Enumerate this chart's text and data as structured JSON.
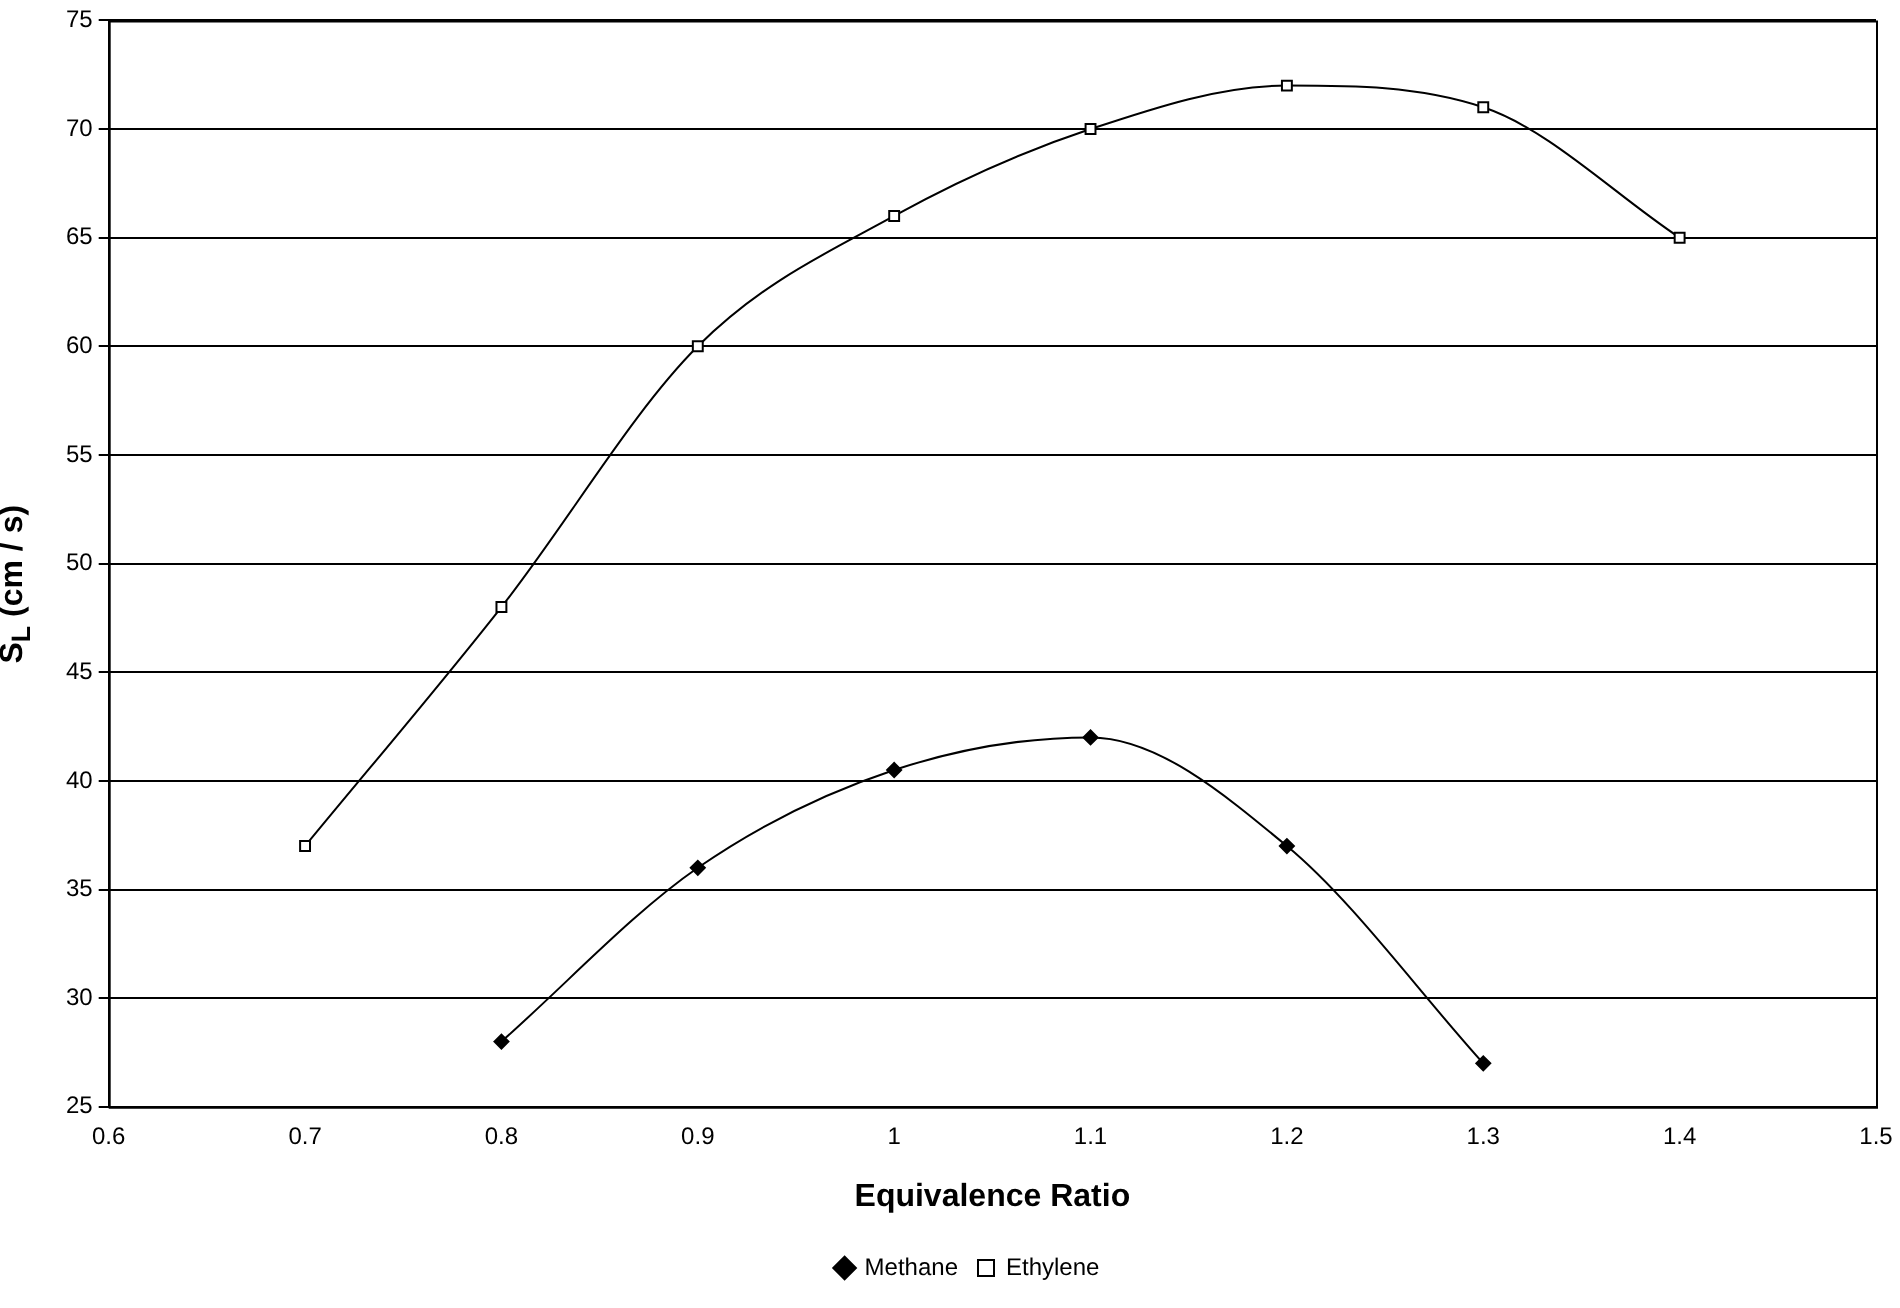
{
  "chart_data": {
    "type": "line",
    "xlabel": "Equivalence Ratio",
    "ylabel": "S$_{L}$ (cm / s)",
    "xlim": [
      0.6,
      1.5
    ],
    "xticks": [
      0.6,
      0.7,
      0.8,
      0.9,
      1,
      1.1,
      1.2,
      1.3,
      1.4,
      1.5
    ],
    "ylim": [
      25,
      75
    ],
    "yticks": [
      25,
      30,
      35,
      40,
      45,
      50,
      55,
      60,
      65,
      70,
      75
    ],
    "grid": "y",
    "legend": "bottom",
    "line_style": "solid",
    "series": [
      {
        "name": "Methane",
        "color": "#000000",
        "marker": "diamond",
        "x": [
          0.8,
          0.9,
          1.0,
          1.1,
          1.2,
          1.3
        ],
        "values": [
          28,
          36,
          40.5,
          42,
          37,
          27
        ]
      },
      {
        "name": "Ethylene",
        "color": "#000000",
        "marker": "square",
        "x": [
          0.7,
          0.8,
          0.9,
          1.0,
          1.1,
          1.2,
          1.3,
          1.4
        ],
        "values": [
          37,
          48,
          60,
          66,
          70,
          72,
          71,
          65
        ]
      }
    ]
  }
}
